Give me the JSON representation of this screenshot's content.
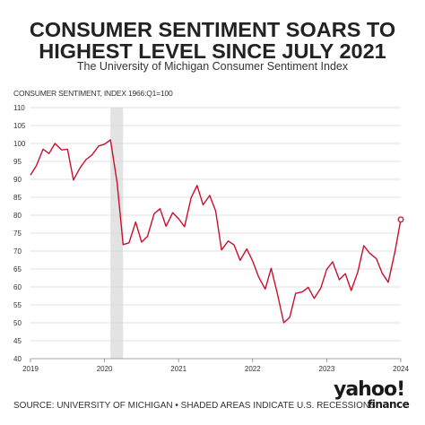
{
  "header": {
    "title_line1": "CONSUMER SENTIMENT SOARS TO",
    "title_line2": "HIGHEST LEVEL SINCE JULY 2021",
    "subtitle": "The University of Michigan Consumer Sentiment Index"
  },
  "footer": {
    "source": "SOURCE: UNIVERSITY OF MICHIGAN • SHADED AREAS INDICATE U.S. RECESSIONS",
    "logo_main": "yahoo!",
    "logo_sub": "finance"
  },
  "colors": {
    "line": "#c8102e",
    "grid": "#d9d9d9",
    "recession": "#e3e3e3",
    "text": "#333333"
  },
  "chart_data": {
    "type": "line",
    "title": "CONSUMER SENTIMENT SOARS TO HIGHEST LEVEL SINCE JULY 2021",
    "subtitle": "The University of Michigan Consumer Sentiment Index",
    "ylabel": "CONSUMER SENTIMENT, INDEX 1966:Q1=100",
    "xlabel": "",
    "ylim": [
      40,
      110
    ],
    "yticks": [
      40,
      45,
      50,
      55,
      60,
      65,
      70,
      75,
      80,
      85,
      90,
      95,
      100,
      105,
      110
    ],
    "xlim": [
      2019.0,
      2024.0
    ],
    "xticks": [
      2019,
      2020,
      2021,
      2022,
      2023,
      2024
    ],
    "xtick_labels": [
      "2019",
      "2020",
      "2021",
      "2022",
      "2023",
      "2024"
    ],
    "grid": "horizontal",
    "recessions": [
      [
        2020.08,
        2020.25
      ]
    ],
    "series": [
      {
        "x": [
          2019.0,
          2019.08,
          2019.17,
          2019.25,
          2019.33,
          2019.42,
          2019.5,
          2019.58,
          2019.67,
          2019.75,
          2019.83,
          2019.92,
          2020.0,
          2020.08,
          2020.17,
          2020.25,
          2020.33,
          2020.42,
          2020.5,
          2020.58,
          2020.67,
          2020.75,
          2020.83,
          2020.92,
          2021.0,
          2021.08,
          2021.17,
          2021.25,
          2021.33,
          2021.42,
          2021.5,
          2021.58,
          2021.67,
          2021.75,
          2021.83,
          2021.92,
          2022.0,
          2022.08,
          2022.17,
          2022.25,
          2022.33,
          2022.42,
          2022.5,
          2022.58,
          2022.67,
          2022.75,
          2022.83,
          2022.92,
          2023.0,
          2023.08,
          2023.17,
          2023.25,
          2023.33,
          2023.42,
          2023.5,
          2023.58,
          2023.67,
          2023.75,
          2023.83,
          2023.92,
          2024.0
        ],
        "y": [
          91.2,
          93.8,
          98.4,
          97.2,
          100.0,
          98.2,
          98.4,
          89.8,
          93.2,
          95.5,
          96.8,
          99.3,
          99.8,
          101.0,
          89.1,
          71.8,
          72.3,
          78.1,
          72.5,
          74.1,
          80.4,
          81.8,
          76.9,
          80.7,
          79.0,
          76.8,
          84.9,
          88.3,
          82.9,
          85.5,
          81.2,
          70.3,
          72.8,
          71.7,
          67.4,
          70.6,
          67.2,
          62.8,
          59.4,
          65.2,
          58.4,
          50.0,
          51.5,
          58.2,
          58.6,
          59.9,
          56.8,
          59.7,
          64.9,
          67.0,
          62.0,
          63.7,
          59.0,
          64.2,
          71.5,
          69.4,
          67.9,
          63.8,
          61.3,
          69.7,
          78.8
        ],
        "marker_last": true
      }
    ]
  }
}
